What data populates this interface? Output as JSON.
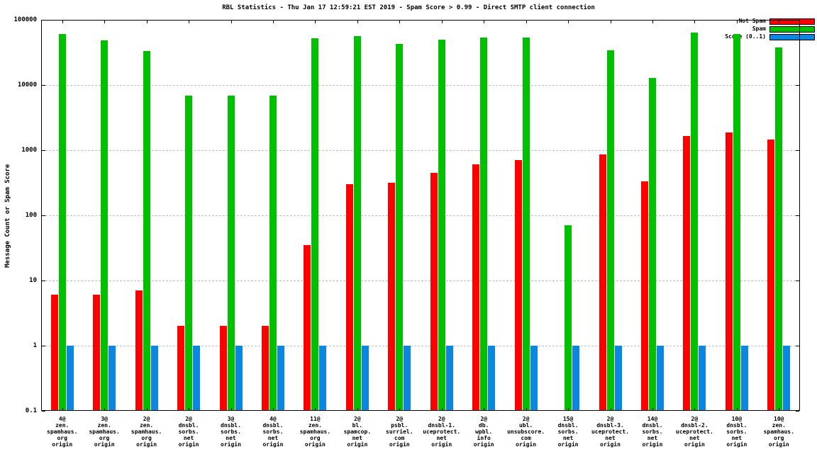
{
  "title": "RBL Statistics - Thu Jan 17 12:59:21 EST 2019 - Spam Score > 0.99 - Direct SMTP client connection",
  "chart_data": {
    "type": "bar",
    "title": "RBL Statistics - Thu Jan 17 12:59:21 EST 2019 - Spam Score > 0.99 - Direct SMTP client connection",
    "xlabel": "",
    "ylabel": "Message Count or Spam Score",
    "y_scale": "log",
    "ylim": [
      0.1,
      100000
    ],
    "yticks": [
      0.1,
      1,
      10,
      100,
      1000,
      10000,
      100000
    ],
    "ytick_labels": [
      "0.1",
      "1",
      "10",
      "100",
      "1000",
      "10000",
      "100000"
    ],
    "grid": true,
    "legend_position": "top-right",
    "categories": [
      "4@ zen. spamhaus. org origin",
      "3@ zen. spamhaus. org origin",
      "2@ zen. spamhaus. org origin",
      "2@ dnsbl. sorbs. net origin",
      "3@ dnsbl. sorbs. net origin",
      "4@ dnsbl. sorbs. net origin",
      "11@ zen. spamhaus. org origin",
      "2@ bl. spamcop. net origin",
      "2@ psbl. surriel. com origin",
      "2@ dnsbl-1. uceprotect. net origin",
      "2@ db. wpbl. info origin",
      "2@ ubl. unsubscore. com origin",
      "15@ dnsbl. sorbs. net origin",
      "2@ dnsbl-3. uceprotect. net origin",
      "14@ dnsbl. sorbs. net origin",
      "2@ dnsbl-2. uceprotect. net origin",
      "10@ dnsbl. sorbs. net origin",
      "10@ zen. spamhaus. org origin"
    ],
    "series": [
      {
        "name": "Not Spam",
        "color": "#ff0000",
        "values": [
          6,
          6,
          7,
          2,
          2,
          2,
          35,
          300,
          320,
          450,
          600,
          700,
          0,
          850,
          330,
          1650,
          1850,
          1450
        ]
      },
      {
        "name": "Spam",
        "color": "#00c000",
        "values": [
          60000,
          48000,
          33000,
          6800,
          6800,
          6800,
          52000,
          56000,
          43000,
          50000,
          54000,
          53000,
          70,
          34000,
          13000,
          64000,
          60000,
          38000
        ]
      },
      {
        "name": "Score (0..1)",
        "color": "#0b87e0",
        "values": [
          1,
          1,
          1,
          1,
          1,
          1,
          1,
          1,
          1,
          1,
          1,
          1,
          1,
          1,
          1,
          1,
          1,
          1
        ]
      }
    ]
  }
}
